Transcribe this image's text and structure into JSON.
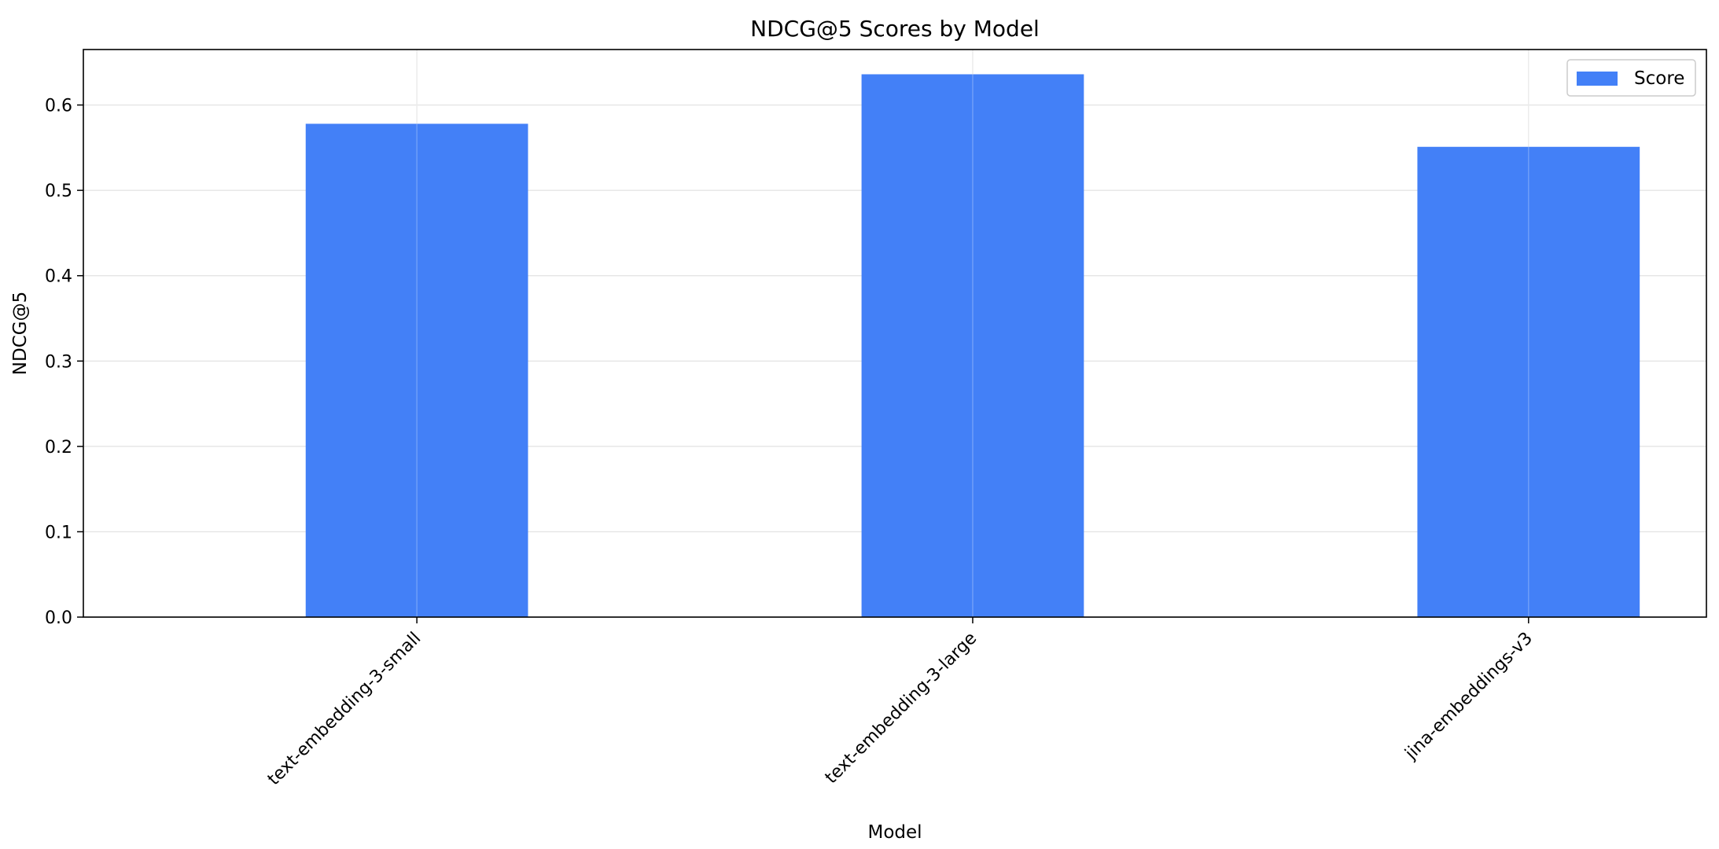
{
  "chart_data": {
    "type": "bar",
    "title": "NDCG@5 Scores by Model",
    "xlabel": "Model",
    "ylabel": "NDCG@5",
    "categories": [
      "text-embedding-3-small",
      "text-embedding-3-large",
      "jina-embeddings-v3"
    ],
    "series": [
      {
        "name": "Score",
        "values": [
          0.578,
          0.636,
          0.551
        ],
        "color": "#4380f7"
      }
    ],
    "ylim": [
      0,
      0.665
    ],
    "yticks": [
      "0.0",
      "0.1",
      "0.2",
      "0.3",
      "0.4",
      "0.5",
      "0.6"
    ],
    "grid": true,
    "legend_position": "top-right"
  }
}
